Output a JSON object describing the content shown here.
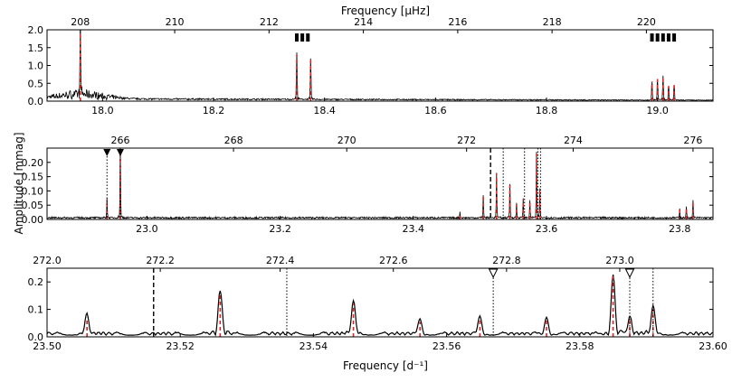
{
  "labels": {
    "top_xlabel": "Frequency [μHz]",
    "bottom_xlabel": "Frequency [d⁻¹]",
    "ylabel": "Amplitude [mmag]"
  },
  "colors": {
    "spectrum": "#000000",
    "fit": "#dd2222"
  },
  "chart_data": [
    {
      "type": "line",
      "panel": "top",
      "xlim": [
        17.9,
        19.1
      ],
      "ylim": [
        0.0,
        2.0
      ],
      "x_ticks": [
        "18.0",
        "18.2",
        "18.4",
        "18.6",
        "18.8",
        "19.0"
      ],
      "y_ticks": [
        "0.0",
        "0.5",
        "1.0",
        "1.5",
        "2.0"
      ],
      "top_ticks": [
        "208",
        "210",
        "212",
        "214",
        "216",
        "218",
        "220"
      ],
      "series": [
        {
          "peaks": [
            [
              17.96,
              1.9
            ],
            [
              18.35,
              1.3
            ],
            [
              18.375,
              1.15
            ],
            [
              18.99,
              0.55
            ],
            [
              19.0,
              0.62
            ],
            [
              19.01,
              0.68
            ],
            [
              19.02,
              0.42
            ],
            [
              19.03,
              0.45
            ]
          ]
        }
      ],
      "markers": {
        "type": "filled-rectangle",
        "x": [
          18.35,
          18.36,
          18.37,
          18.99,
          19.0,
          19.01,
          19.02,
          19.03
        ]
      }
    },
    {
      "type": "line",
      "panel": "middle",
      "xlim": [
        22.85,
        23.85
      ],
      "ylim": [
        0.0,
        0.25
      ],
      "x_ticks": [
        "23.0",
        "23.2",
        "23.4",
        "23.6",
        "23.8"
      ],
      "y_ticks": [
        "0.00",
        "0.05",
        "0.10",
        "0.15",
        "0.20"
      ],
      "top_ticks": [
        "266",
        "268",
        "270",
        "272",
        "274",
        "276"
      ],
      "series": [
        {
          "peaks": [
            [
              22.94,
              0.07
            ],
            [
              22.96,
              0.23
            ],
            [
              23.47,
              0.02
            ],
            [
              23.505,
              0.08
            ],
            [
              23.525,
              0.16
            ],
            [
              23.545,
              0.12
            ],
            [
              23.555,
              0.05
            ],
            [
              23.565,
              0.07
            ],
            [
              23.575,
              0.06
            ],
            [
              23.585,
              0.23
            ],
            [
              23.59,
              0.1
            ],
            [
              23.8,
              0.035
            ],
            [
              23.81,
              0.04
            ],
            [
              23.82,
              0.06
            ]
          ]
        }
      ],
      "markers": {
        "type": "filled-triangle",
        "x": [
          22.94,
          22.96
        ]
      },
      "vlines": [
        {
          "x": 23.516,
          "style": "dashed"
        },
        {
          "x": 23.535,
          "style": "dotted"
        },
        {
          "x": 23.567,
          "style": "dotted"
        },
        {
          "x": 23.587,
          "style": "dotted"
        },
        {
          "x": 23.591,
          "style": "dotted"
        }
      ]
    },
    {
      "type": "line",
      "panel": "bottom",
      "xlim": [
        23.5,
        23.6
      ],
      "ylim": [
        0.0,
        0.25
      ],
      "x_ticks": [
        "23.50",
        "23.52",
        "23.54",
        "23.56",
        "23.58",
        "23.60"
      ],
      "y_ticks": [
        "0.0",
        "0.1",
        "0.2"
      ],
      "top_ticks": [
        "272.0",
        "272.2",
        "272.4",
        "272.6",
        "272.8",
        "273.0"
      ],
      "series": [
        {
          "peaks": [
            [
              23.506,
              0.07
            ],
            [
              23.526,
              0.16
            ],
            [
              23.546,
              0.12
            ],
            [
              23.556,
              0.055
            ],
            [
              23.565,
              0.065
            ],
            [
              23.575,
              0.065
            ],
            [
              23.585,
              0.22
            ],
            [
              23.5875,
              0.06
            ],
            [
              23.591,
              0.1
            ]
          ]
        }
      ],
      "markers": {
        "type": "open-triangle",
        "x": [
          23.567,
          23.5875
        ]
      },
      "vlines": [
        {
          "x": 23.516,
          "style": "dashed"
        },
        {
          "x": 23.536,
          "style": "dotted"
        },
        {
          "x": 23.567,
          "style": "dotted"
        },
        {
          "x": 23.5875,
          "style": "dotted"
        },
        {
          "x": 23.591,
          "style": "dotted"
        }
      ]
    }
  ]
}
